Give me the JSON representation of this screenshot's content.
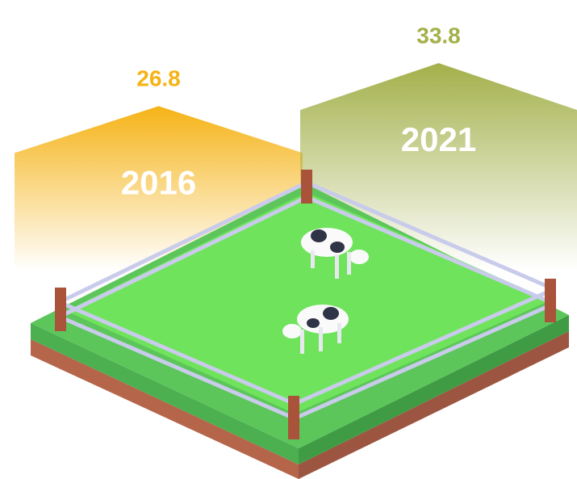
{
  "chart_data": {
    "type": "bar",
    "categories": [
      "2016",
      "2021"
    ],
    "values": [
      26.8,
      33.8
    ],
    "colors": [
      "#f5b316",
      "#a3b04a"
    ]
  }
}
